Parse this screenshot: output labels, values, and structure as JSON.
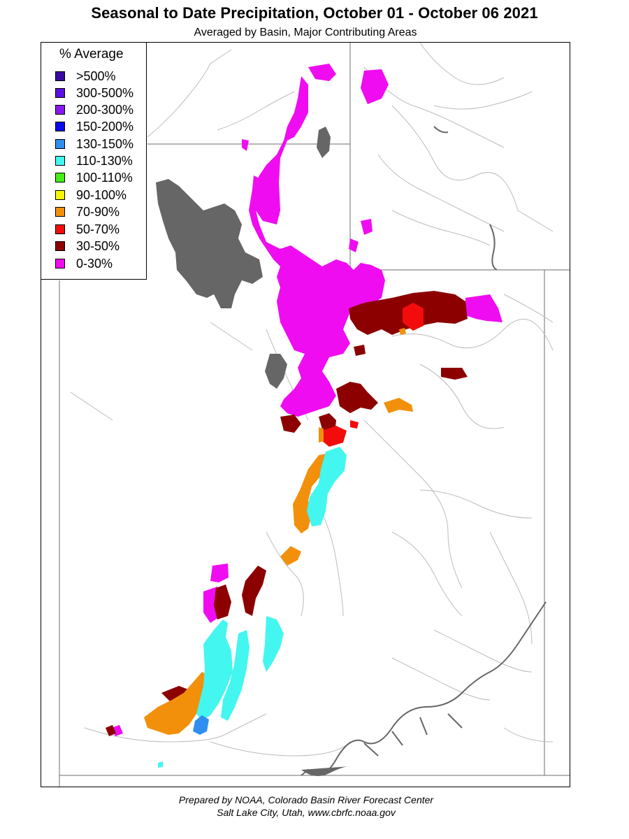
{
  "title": "Seasonal to Date Precipitation, October 01  - October 06 2021",
  "subtitle": "Averaged by Basin, Major Contributing Areas",
  "legend": {
    "title": "% Average",
    "items": [
      {
        "label": ">500%",
        "color": "#3a0aa0"
      },
      {
        "label": "300-500%",
        "color": "#5a10e0"
      },
      {
        "label": "200-300%",
        "color": "#8a18f0"
      },
      {
        "label": "150-200%",
        "color": "#0a0af0"
      },
      {
        "label": "130-150%",
        "color": "#2f8ff0"
      },
      {
        "label": "110-130%",
        "color": "#44f6f0"
      },
      {
        "label": "100-110%",
        "color": "#44f016"
      },
      {
        "label": "90-100%",
        "color": "#f6f600"
      },
      {
        "label": "70-90%",
        "color": "#f2900c"
      },
      {
        "label": "50-70%",
        "color": "#f20c0c"
      },
      {
        "label": "30-50%",
        "color": "#8c0000"
      },
      {
        "label": "0-30%",
        "color": "#f00cf0"
      }
    ]
  },
  "colors": {
    "lake": "#666666",
    "river": "#bcbcbc",
    "border": "#6e6e6e"
  },
  "footer": {
    "line1": "Prepared by NOAA, Colorado Basin River Forecast Center",
    "line2": "Salt Lake City, Utah, www.cbrfc.noaa.gov"
  }
}
